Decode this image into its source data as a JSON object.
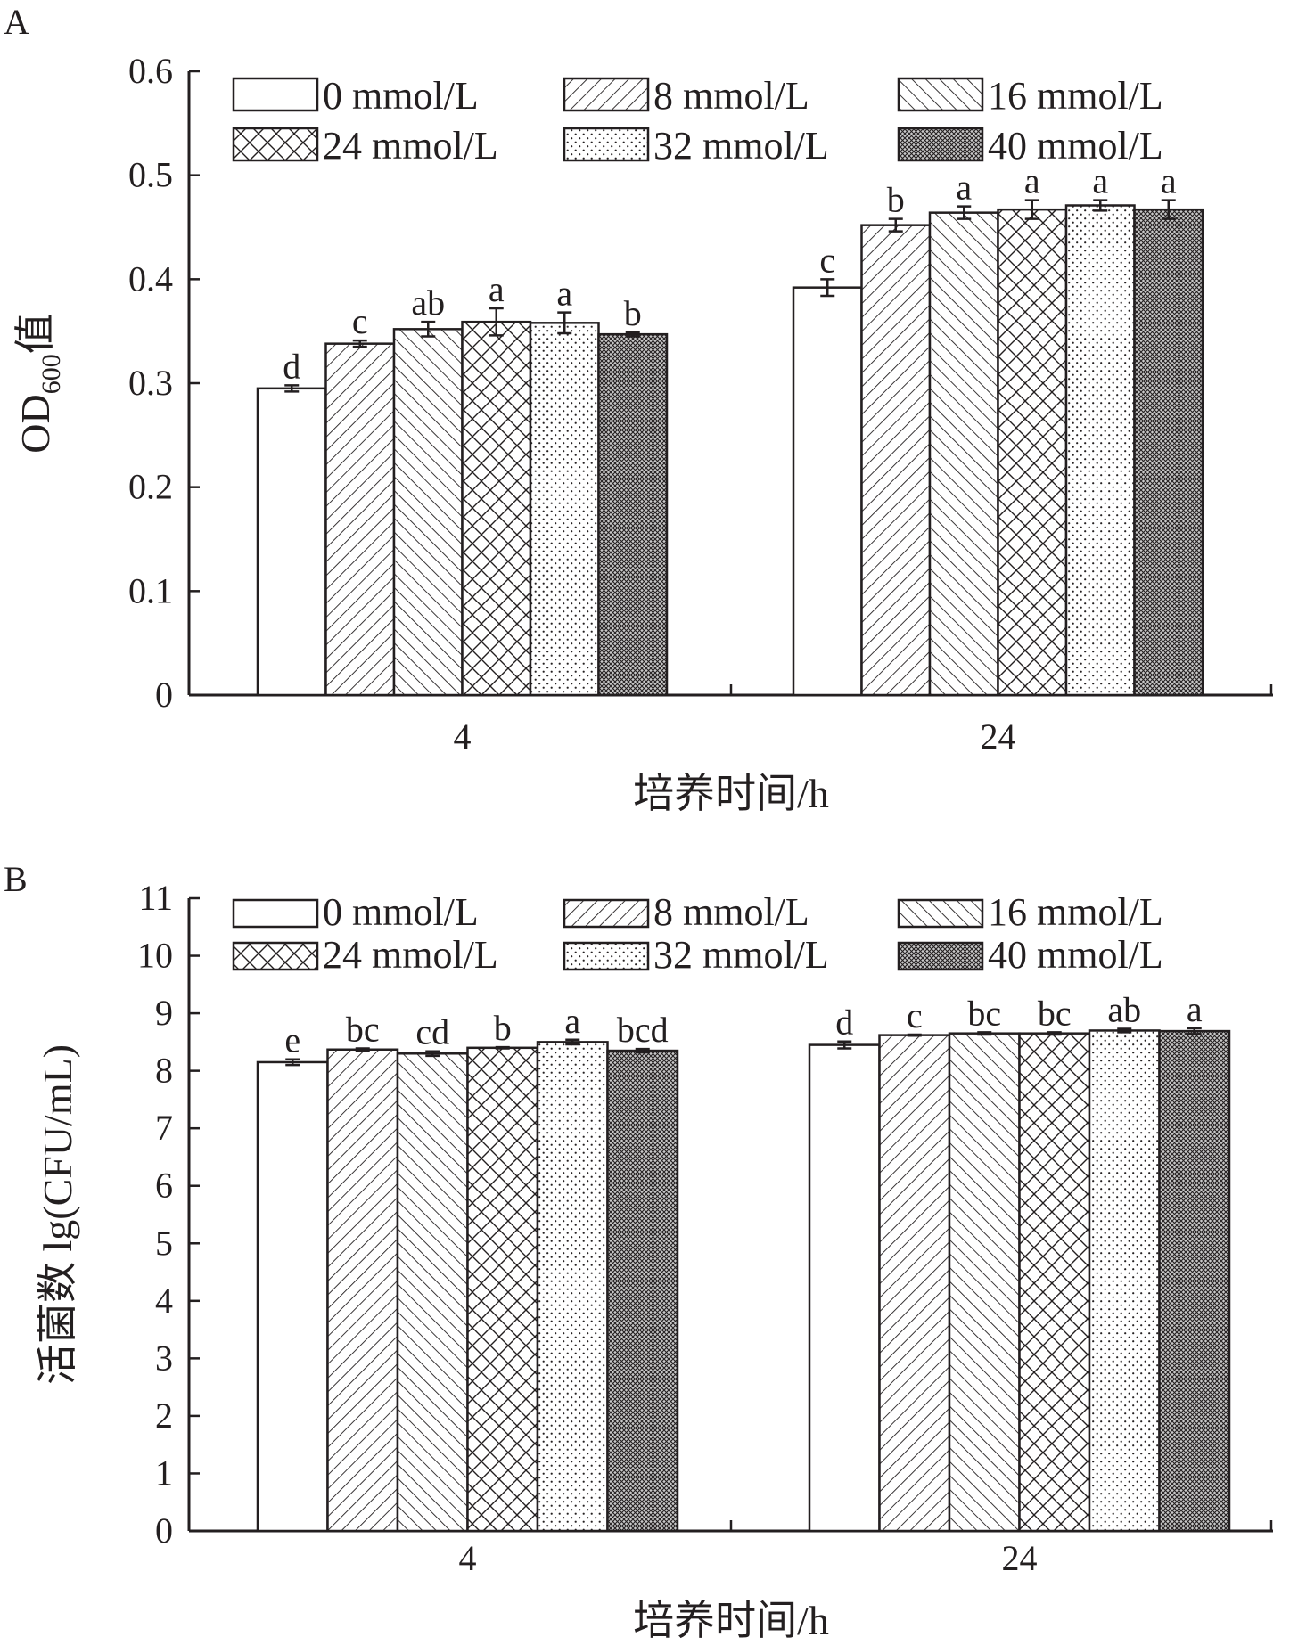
{
  "chart_data": [
    {
      "panel_label": "A",
      "type": "bar",
      "categories": [
        "4",
        "24"
      ],
      "xlabel": "培养时间/h",
      "ylabel": {
        "main": "OD",
        "sub": "600",
        "suffix": "值"
      },
      "ylim": [
        0,
        0.6
      ],
      "yticks": [
        "0",
        "0.1",
        "0.2",
        "0.3",
        "0.4",
        "0.5",
        "0.6"
      ],
      "legend_position": "top",
      "grid": false,
      "series": [
        {
          "name": "0 mmol/L",
          "pattern": "empty",
          "values": [
            0.295,
            0.392
          ],
          "errors": [
            0.003,
            0.008
          ],
          "letters": [
            "d",
            "c"
          ]
        },
        {
          "name": "8 mmol/L",
          "pattern": "diag-fwd",
          "values": [
            0.338,
            0.452
          ],
          "errors": [
            0.003,
            0.006
          ],
          "letters": [
            "c",
            "b"
          ]
        },
        {
          "name": "16 mmol/L",
          "pattern": "diag-back",
          "values": [
            0.352,
            0.464
          ],
          "errors": [
            0.007,
            0.006
          ],
          "letters": [
            "ab",
            "a"
          ]
        },
        {
          "name": "24 mmol/L",
          "pattern": "cross",
          "values": [
            0.359,
            0.467
          ],
          "errors": [
            0.013,
            0.009
          ],
          "letters": [
            "a",
            "a"
          ]
        },
        {
          "name": "32 mmol/L",
          "pattern": "dots",
          "values": [
            0.358,
            0.471
          ],
          "errors": [
            0.01,
            0.005
          ],
          "letters": [
            "a",
            "a"
          ]
        },
        {
          "name": "40 mmol/L",
          "pattern": "dense",
          "values": [
            0.347,
            0.467
          ],
          "errors": [
            0.002,
            0.009
          ],
          "letters": [
            "b",
            "a"
          ]
        }
      ]
    },
    {
      "panel_label": "B",
      "type": "bar",
      "categories": [
        "4",
        "24"
      ],
      "xlabel": "培养时间/h",
      "ylabel": {
        "main": "活菌数 lg(CFU/mL)",
        "sub": "",
        "suffix": ""
      },
      "ylim": [
        0,
        11
      ],
      "yticks": [
        "0",
        "1",
        "2",
        "3",
        "4",
        "5",
        "6",
        "7",
        "8",
        "9",
        "10",
        "11"
      ],
      "legend_position": "top",
      "grid": false,
      "series": [
        {
          "name": "0 mmol/L",
          "pattern": "empty",
          "values": [
            8.15,
            8.45
          ],
          "errors": [
            0.05,
            0.06
          ],
          "letters": [
            "e",
            "d"
          ]
        },
        {
          "name": "8 mmol/L",
          "pattern": "diag-fwd",
          "values": [
            8.37,
            8.62
          ],
          "errors": [
            0.02,
            0.01
          ],
          "letters": [
            "bc",
            "c"
          ]
        },
        {
          "name": "16 mmol/L",
          "pattern": "diag-back",
          "values": [
            8.3,
            8.65
          ],
          "errors": [
            0.04,
            0.02
          ],
          "letters": [
            "cd",
            "bc"
          ]
        },
        {
          "name": "24 mmol/L",
          "pattern": "cross",
          "values": [
            8.4,
            8.65
          ],
          "errors": [
            0.01,
            0.02
          ],
          "letters": [
            "b",
            "bc"
          ]
        },
        {
          "name": "32 mmol/L",
          "pattern": "dots",
          "values": [
            8.5,
            8.7
          ],
          "errors": [
            0.04,
            0.03
          ],
          "letters": [
            "a",
            "ab"
          ]
        },
        {
          "name": "40 mmol/L",
          "pattern": "dense",
          "values": [
            8.35,
            8.69
          ],
          "errors": [
            0.03,
            0.05
          ],
          "letters": [
            "bcd",
            "a"
          ]
        }
      ]
    }
  ]
}
